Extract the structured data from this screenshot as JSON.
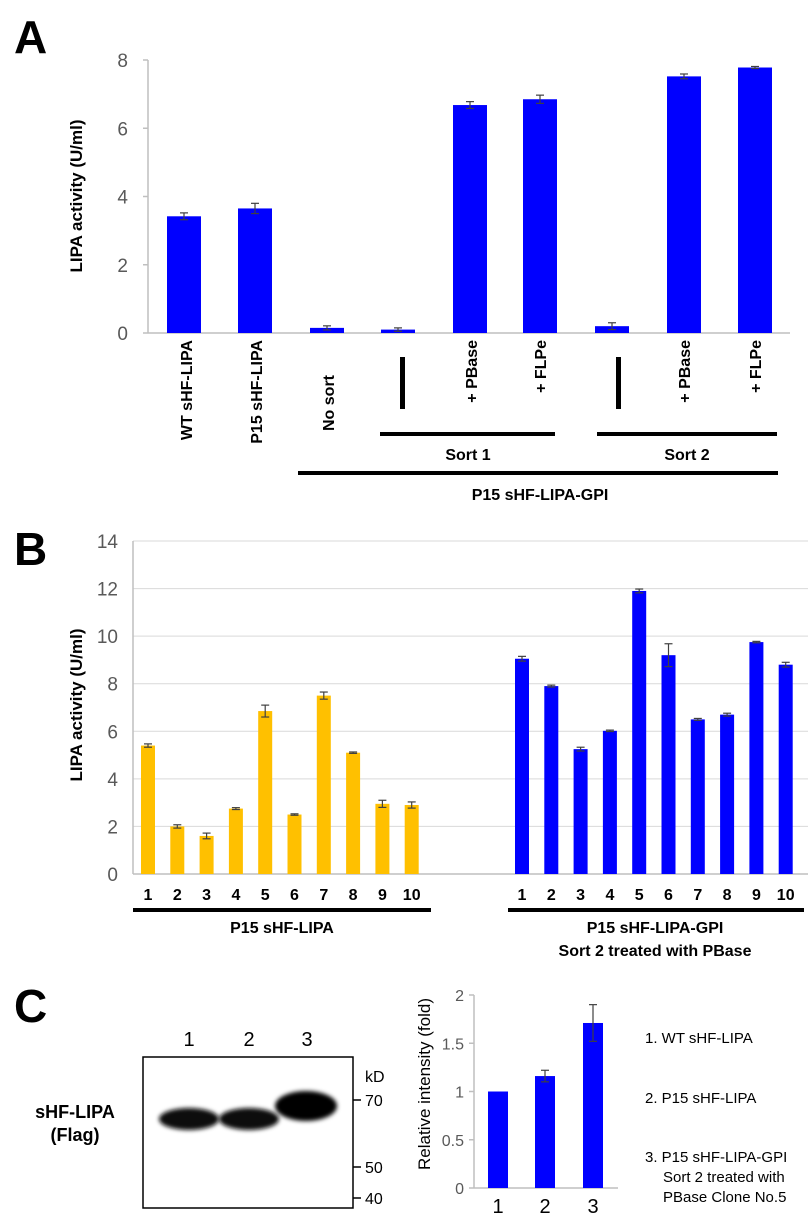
{
  "colors": {
    "blue": "#0000ff",
    "orange": "#ffc000",
    "axis": "#bfbfbf",
    "grid": "#d9d9d9",
    "err": "#404040"
  },
  "panels": {
    "a": "A",
    "b": "B",
    "c": "C"
  },
  "chart_data": [
    {
      "type": "bar",
      "ylabel": "LIPA activity (U/ml)",
      "ylim": [
        0,
        8
      ],
      "yticks": [
        "0",
        "2",
        "4",
        "6",
        "8"
      ],
      "grid": false,
      "categories": [
        "WT  sHF-LIPA",
        "P15  sHF-LIPA",
        "No sort",
        "|",
        "+ PBase",
        "+ FLPe",
        "|",
        "+ PBase",
        "+ FLPe"
      ],
      "values": [
        3.42,
        3.65,
        0.15,
        0.1,
        6.68,
        6.85,
        0.2,
        7.52,
        7.78
      ],
      "errors": [
        0.1,
        0.15,
        0.06,
        0.05,
        0.1,
        0.12,
        0.1,
        0.07,
        0.03
      ],
      "groups": [
        "Sort 1",
        "Sort 2",
        "P15  sHF-LIPA-GPI"
      ]
    },
    {
      "type": "bar",
      "ylabel": "LIPA activity (U/ml)",
      "ylim": [
        0,
        14
      ],
      "yticks": [
        "0",
        "2",
        "4",
        "6",
        "8",
        "10",
        "12",
        "14"
      ],
      "grid": true,
      "series": [
        {
          "categories": [
            "1",
            "2",
            "3",
            "4",
            "5",
            "6",
            "7",
            "8",
            "9",
            "10"
          ],
          "values": [
            5.4,
            2.0,
            1.6,
            2.75,
            6.85,
            2.5,
            7.5,
            5.1,
            2.95,
            2.9
          ],
          "errors": [
            0.07,
            0.07,
            0.12,
            0.04,
            0.25,
            0.03,
            0.15,
            0.03,
            0.15,
            0.13
          ],
          "color": "#ffc000",
          "group": "P15  sHF-LIPA"
        },
        {
          "categories": [
            "1",
            "2",
            "3",
            "4",
            "5",
            "6",
            "7",
            "8",
            "9",
            "10"
          ],
          "values": [
            9.05,
            7.9,
            5.25,
            6.02,
            11.9,
            9.2,
            6.5,
            6.7,
            9.75,
            8.8
          ],
          "errors": [
            0.1,
            0.04,
            0.08,
            0.03,
            0.08,
            0.48,
            0.04,
            0.06,
            0.03,
            0.1
          ],
          "color": "#0000ff",
          "group": "P15  sHF-LIPA-GPI",
          "group_line2": "Sort 2 treated with PBase"
        }
      ]
    },
    {
      "type": "bar",
      "ylabel": "Relative intensity (fold)",
      "ylim": [
        0,
        2
      ],
      "yticks": [
        "0",
        "0.5",
        "1",
        "1.5",
        "2"
      ],
      "grid": false,
      "categories": [
        "1",
        "2",
        "3"
      ],
      "values": [
        1.0,
        1.16,
        1.71
      ],
      "errors": [
        0.0,
        0.06,
        0.19
      ]
    }
  ],
  "blot": {
    "lanes": [
      "1",
      "2",
      "3"
    ],
    "kd_label": "kD",
    "markers": [
      "70",
      "50",
      "40"
    ],
    "protein_line1": "sHF-LIPA",
    "protein_line2": "(Flag)"
  },
  "legend_c": [
    [
      "1. WT sHF-LIPA"
    ],
    [
      "2. P15 sHF-LIPA"
    ],
    [
      "3. P15 sHF-LIPA-GPI",
      "Sort 2 treated with",
      "PBase Clone No.5"
    ]
  ]
}
